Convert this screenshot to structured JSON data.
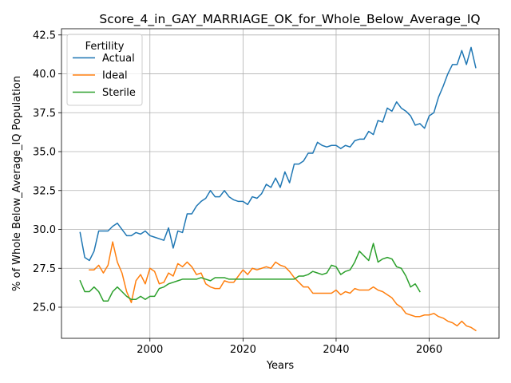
{
  "chart_data": {
    "type": "line",
    "title": "Score_4_in_GAY_MARRIAGE_OK_for_Whole_Below_Average_IQ",
    "xlabel": "Years",
    "ylabel": "% of Whole Below_Average_IQ Population",
    "xlim": [
      1981,
      2075
    ],
    "ylim": [
      23.0,
      42.9
    ],
    "xticks": [
      2000,
      2020,
      2040,
      2060
    ],
    "yticks": [
      25.0,
      27.5,
      30.0,
      32.5,
      35.0,
      37.5,
      40.0,
      42.5
    ],
    "ytick_labels": [
      "25.0",
      "27.5",
      "30.0",
      "32.5",
      "35.0",
      "37.5",
      "40.0",
      "42.5"
    ],
    "grid": true,
    "legend": {
      "title": "Fertility",
      "placement": "top-left"
    },
    "series": [
      {
        "name": "Actual",
        "color": "#1f77b4",
        "x": [
          1985,
          1986,
          1987,
          1988,
          1989,
          1990,
          1991,
          1992,
          1993,
          1994,
          1995,
          1996,
          1997,
          1998,
          1999,
          2000,
          2001,
          2002,
          2003,
          2004,
          2005,
          2006,
          2007,
          2008,
          2009,
          2010,
          2011,
          2012,
          2013,
          2014,
          2015,
          2016,
          2017,
          2018,
          2019,
          2020,
          2021,
          2022,
          2023,
          2024,
          2025,
          2026,
          2027,
          2028,
          2029,
          2030,
          2031,
          2032,
          2033,
          2034,
          2035,
          2036,
          2037,
          2038,
          2039,
          2040,
          2041,
          2042,
          2043,
          2044,
          2045,
          2046,
          2047,
          2048,
          2049,
          2050,
          2051,
          2052,
          2053,
          2054,
          2055,
          2056,
          2057,
          2058,
          2059,
          2060,
          2061,
          2062,
          2063,
          2064,
          2065,
          2066,
          2067,
          2068,
          2069,
          2070
        ],
        "values": [
          29.8,
          28.2,
          28.0,
          28.6,
          29.9,
          29.9,
          29.9,
          30.2,
          30.4,
          30.0,
          29.6,
          29.6,
          29.8,
          29.7,
          29.9,
          29.6,
          29.5,
          29.4,
          29.3,
          30.1,
          28.8,
          29.9,
          29.8,
          31.0,
          31.0,
          31.5,
          31.8,
          32.0,
          32.5,
          32.1,
          32.1,
          32.5,
          32.1,
          31.9,
          31.8,
          31.8,
          31.6,
          32.1,
          32.0,
          32.3,
          32.9,
          32.7,
          33.3,
          32.7,
          33.7,
          33.0,
          34.2,
          34.2,
          34.4,
          34.9,
          34.9,
          35.6,
          35.4,
          35.3,
          35.4,
          35.4,
          35.2,
          35.4,
          35.3,
          35.7,
          35.8,
          35.8,
          36.3,
          36.1,
          37.0,
          36.9,
          37.8,
          37.6,
          38.2,
          37.8,
          37.6,
          37.3,
          36.7,
          36.8,
          36.5,
          37.3,
          37.5,
          38.5,
          39.2,
          40.0,
          40.6,
          40.6,
          41.5,
          40.6,
          41.7,
          40.4
        ]
      },
      {
        "name": "Ideal",
        "color": "#ff7f0e",
        "x": [
          1987,
          1988,
          1989,
          1990,
          1991,
          1992,
          1993,
          1994,
          1995,
          1996,
          1997,
          1998,
          1999,
          2000,
          2001,
          2002,
          2003,
          2004,
          2005,
          2006,
          2007,
          2008,
          2009,
          2010,
          2011,
          2012,
          2013,
          2014,
          2015,
          2016,
          2017,
          2018,
          2019,
          2020,
          2021,
          2022,
          2023,
          2024,
          2025,
          2026,
          2027,
          2028,
          2029,
          2030,
          2031,
          2032,
          2033,
          2034,
          2035,
          2036,
          2037,
          2038,
          2039,
          2040,
          2041,
          2042,
          2043,
          2044,
          2045,
          2046,
          2047,
          2048,
          2049,
          2050,
          2051,
          2052,
          2053,
          2054,
          2055,
          2056,
          2057,
          2058,
          2059,
          2060,
          2061,
          2062,
          2063,
          2064,
          2065,
          2066,
          2067,
          2068,
          2069,
          2070
        ],
        "values": [
          27.4,
          27.4,
          27.7,
          27.2,
          27.7,
          29.2,
          27.9,
          27.2,
          26.0,
          25.3,
          26.7,
          27.1,
          26.5,
          27.5,
          27.3,
          26.5,
          26.6,
          27.2,
          27.0,
          27.8,
          27.6,
          27.9,
          27.6,
          27.1,
          27.2,
          26.5,
          26.3,
          26.2,
          26.2,
          26.7,
          26.6,
          26.6,
          27.0,
          27.4,
          27.1,
          27.5,
          27.4,
          27.5,
          27.6,
          27.5,
          27.9,
          27.7,
          27.6,
          27.3,
          26.9,
          26.6,
          26.3,
          26.3,
          25.9,
          25.9,
          25.9,
          25.9,
          25.9,
          26.1,
          25.8,
          26.0,
          25.9,
          26.2,
          26.1,
          26.1,
          26.1,
          26.3,
          26.1,
          26.0,
          25.8,
          25.6,
          25.2,
          25.0,
          24.6,
          24.5,
          24.4,
          24.4,
          24.5,
          24.5,
          24.6,
          24.4,
          24.3,
          24.1,
          24.0,
          23.8,
          24.1,
          23.8,
          23.7,
          23.5
        ]
      },
      {
        "name": "Sterile",
        "color": "#2ca02c",
        "x": [
          1985,
          1986,
          1987,
          1988,
          1989,
          1990,
          1991,
          1992,
          1993,
          1994,
          1995,
          1996,
          1997,
          1998,
          1999,
          2000,
          2001,
          2002,
          2003,
          2004,
          2005,
          2006,
          2007,
          2008,
          2009,
          2010,
          2011,
          2012,
          2013,
          2014,
          2015,
          2016,
          2017,
          2018,
          2019,
          2020,
          2021,
          2022,
          2023,
          2024,
          2025,
          2026,
          2027,
          2028,
          2029,
          2030,
          2031,
          2032,
          2033,
          2034,
          2035,
          2036,
          2037,
          2038,
          2039,
          2040,
          2041,
          2042,
          2043,
          2044,
          2045,
          2046,
          2047,
          2048,
          2049,
          2050,
          2051,
          2052,
          2053,
          2054,
          2055,
          2056,
          2057,
          2058
        ],
        "values": [
          26.7,
          26.0,
          26.0,
          26.3,
          26.0,
          25.4,
          25.4,
          26.0,
          26.3,
          26.0,
          25.7,
          25.5,
          25.5,
          25.7,
          25.5,
          25.7,
          25.7,
          26.2,
          26.3,
          26.5,
          26.6,
          26.7,
          26.8,
          26.8,
          26.8,
          26.8,
          26.9,
          26.8,
          26.7,
          26.9,
          26.9,
          26.9,
          26.8,
          26.8,
          26.8,
          26.8,
          26.8,
          26.8,
          26.8,
          26.8,
          26.8,
          26.8,
          26.8,
          26.8,
          26.8,
          26.8,
          26.8,
          27.0,
          27.0,
          27.1,
          27.3,
          27.2,
          27.1,
          27.2,
          27.7,
          27.6,
          27.1,
          27.3,
          27.4,
          27.9,
          28.6,
          28.3,
          28.0,
          29.1,
          27.9,
          28.1,
          28.2,
          28.1,
          27.6,
          27.5,
          27.0,
          26.3,
          26.5,
          26.0
        ]
      }
    ]
  }
}
